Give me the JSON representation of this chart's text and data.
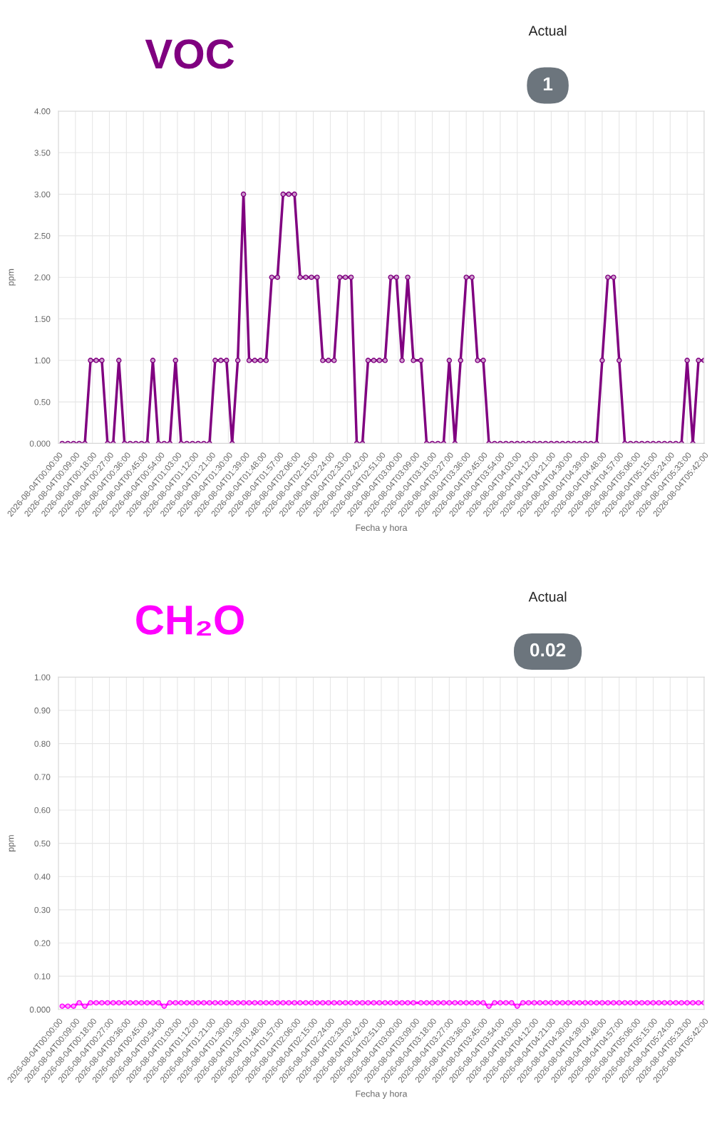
{
  "chart_data": [
    {
      "type": "line",
      "title": "VOC",
      "xlabel": "Fecha y hora",
      "ylabel": "ppm",
      "annotations": [
        "Actual",
        "1"
      ],
      "x": [
        "2026-08-04T00:02",
        "2026-08-04T00:05",
        "2026-08-04T00:08",
        "2026-08-04T00:11",
        "2026-08-04T00:14",
        "2026-08-04T00:17",
        "2026-08-04T00:20",
        "2026-08-04T00:23",
        "2026-08-04T00:26",
        "2026-08-04T00:29",
        "2026-08-04T00:32",
        "2026-08-04T00:35",
        "2026-08-04T00:38",
        "2026-08-04T00:41",
        "2026-08-04T00:44",
        "2026-08-04T00:47",
        "2026-08-04T00:50",
        "2026-08-04T00:53",
        "2026-08-04T00:56",
        "2026-08-04T00:59",
        "2026-08-04T01:02",
        "2026-08-04T01:05",
        "2026-08-04T01:08",
        "2026-08-04T01:11",
        "2026-08-04T01:14",
        "2026-08-04T01:17",
        "2026-08-04T01:20",
        "2026-08-04T01:23",
        "2026-08-04T01:26",
        "2026-08-04T01:29",
        "2026-08-04T01:32",
        "2026-08-04T01:35",
        "2026-08-04T01:38",
        "2026-08-04T01:41",
        "2026-08-04T01:44",
        "2026-08-04T01:47",
        "2026-08-04T01:50",
        "2026-08-04T01:53",
        "2026-08-04T01:56",
        "2026-08-04T01:59",
        "2026-08-04T02:02",
        "2026-08-04T02:05",
        "2026-08-04T02:08",
        "2026-08-04T02:11",
        "2026-08-04T02:14",
        "2026-08-04T02:17",
        "2026-08-04T02:20",
        "2026-08-04T02:23",
        "2026-08-04T02:26",
        "2026-08-04T02:29",
        "2026-08-04T02:32",
        "2026-08-04T02:35",
        "2026-08-04T02:38",
        "2026-08-04T02:41",
        "2026-08-04T02:44",
        "2026-08-04T02:47",
        "2026-08-04T02:50",
        "2026-08-04T02:53",
        "2026-08-04T02:56",
        "2026-08-04T02:59",
        "2026-08-04T03:02",
        "2026-08-04T03:05",
        "2026-08-04T03:08",
        "2026-08-04T03:12",
        "2026-08-04T03:15",
        "2026-08-04T03:18",
        "2026-08-04T03:21",
        "2026-08-04T03:24",
        "2026-08-04T03:27",
        "2026-08-04T03:30",
        "2026-08-04T03:33",
        "2026-08-04T03:36",
        "2026-08-04T03:39",
        "2026-08-04T03:42",
        "2026-08-04T03:45",
        "2026-08-04T03:48",
        "2026-08-04T03:51",
        "2026-08-04T03:54",
        "2026-08-04T03:57",
        "2026-08-04T04:00",
        "2026-08-04T04:03",
        "2026-08-04T04:06",
        "2026-08-04T04:09",
        "2026-08-04T04:12",
        "2026-08-04T04:15",
        "2026-08-04T04:18",
        "2026-08-04T04:21",
        "2026-08-04T04:24",
        "2026-08-04T04:27",
        "2026-08-04T04:30",
        "2026-08-04T04:33",
        "2026-08-04T04:36",
        "2026-08-04T04:39",
        "2026-08-04T04:42",
        "2026-08-04T04:45",
        "2026-08-04T04:48",
        "2026-08-04T04:51",
        "2026-08-04T04:54",
        "2026-08-04T04:57",
        "2026-08-04T05:00",
        "2026-08-04T05:03",
        "2026-08-04T05:06",
        "2026-08-04T05:09",
        "2026-08-04T05:12",
        "2026-08-04T05:15",
        "2026-08-04T05:18",
        "2026-08-04T05:21",
        "2026-08-04T05:24",
        "2026-08-04T05:27",
        "2026-08-04T05:30",
        "2026-08-04T05:33",
        "2026-08-04T05:36",
        "2026-08-04T05:39",
        "2026-08-04T05:42"
      ],
      "series": [
        {
          "color": "#800080",
          "values": [
            0,
            0,
            0,
            0,
            0,
            1,
            1,
            1,
            0,
            0,
            1,
            0,
            0,
            0,
            0,
            0,
            1,
            0,
            0,
            0,
            1,
            0,
            0,
            0,
            0,
            0,
            0,
            1,
            1,
            1,
            0,
            1,
            3,
            1,
            1,
            1,
            1,
            2,
            2,
            3,
            3,
            3,
            2,
            2,
            2,
            2,
            1,
            1,
            1,
            2,
            2,
            2,
            0,
            0,
            1,
            1,
            1,
            1,
            2,
            2,
            1,
            2,
            1,
            1,
            0,
            0,
            0,
            0,
            1,
            0,
            1,
            2,
            2,
            1,
            1,
            0,
            0,
            0,
            0,
            0,
            0,
            0,
            0,
            0,
            0,
            0,
            0,
            0,
            0,
            0,
            0,
            0,
            0,
            0,
            0,
            1,
            2,
            2,
            1,
            0,
            0,
            0,
            0,
            0,
            0,
            0,
            0,
            0,
            0,
            0,
            1,
            0,
            1,
            1
          ]
        }
      ],
      "xlim": [
        "2026-08-04T00:00",
        "2026-08-04T05:42"
      ],
      "xticks": [
        {
          "value": "2026-08-04T00:00",
          "label": "2026-08-04T00:00:00"
        },
        {
          "value": "2026-08-04T00:09",
          "label": "2026-08-04T00:09:00"
        },
        {
          "value": "2026-08-04T00:18",
          "label": "2026-08-04T00:18:00"
        },
        {
          "value": "2026-08-04T00:27",
          "label": "2026-08-04T00:27:00"
        },
        {
          "value": "2026-08-04T00:36",
          "label": "2026-08-04T00:36:00"
        },
        {
          "value": "2026-08-04T00:45",
          "label": "2026-08-04T00:45:00"
        },
        {
          "value": "2026-08-04T00:54",
          "label": "2026-08-04T00:54:00"
        },
        {
          "value": "2026-08-04T01:03",
          "label": "2026-08-04T01:03:00"
        },
        {
          "value": "2026-08-04T01:12",
          "label": "2026-08-04T01:12:00"
        },
        {
          "value": "2026-08-04T01:21",
          "label": "2026-08-04T01:21:00"
        },
        {
          "value": "2026-08-04T01:30",
          "label": "2026-08-04T01:30:00"
        },
        {
          "value": "2026-08-04T01:39",
          "label": "2026-08-04T01:39:00"
        },
        {
          "value": "2026-08-04T01:48",
          "label": "2026-08-04T01:48:00"
        },
        {
          "value": "2026-08-04T01:57",
          "label": "2026-08-04T01:57:00"
        },
        {
          "value": "2026-08-04T02:06",
          "label": "2026-08-04T02:06:00"
        },
        {
          "value": "2026-08-04T02:15",
          "label": "2026-08-04T02:15:00"
        },
        {
          "value": "2026-08-04T02:24",
          "label": "2026-08-04T02:24:00"
        },
        {
          "value": "2026-08-04T02:33",
          "label": "2026-08-04T02:33:00"
        },
        {
          "value": "2026-08-04T02:42",
          "label": "2026-08-04T02:42:00"
        },
        {
          "value": "2026-08-04T02:51",
          "label": "2026-08-04T02:51:00"
        },
        {
          "value": "2026-08-04T03:00",
          "label": "2026-08-04T03:00:00"
        },
        {
          "value": "2026-08-04T03:09",
          "label": "2026-08-04T03:09:00"
        },
        {
          "value": "2026-08-04T03:18",
          "label": "2026-08-04T03:18:00"
        },
        {
          "value": "2026-08-04T03:27",
          "label": "2026-08-04T03:27:00"
        },
        {
          "value": "2026-08-04T03:36",
          "label": "2026-08-04T03:36:00"
        },
        {
          "value": "2026-08-04T03:45",
          "label": "2026-08-04T03:45:00"
        },
        {
          "value": "2026-08-04T03:54",
          "label": "2026-08-04T03:54:00"
        },
        {
          "value": "2026-08-04T04:03",
          "label": "2026-08-04T04:03:00"
        },
        {
          "value": "2026-08-04T04:12",
          "label": "2026-08-04T04:12:00"
        },
        {
          "value": "2026-08-04T04:21",
          "label": "2026-08-04T04:21:00"
        },
        {
          "value": "2026-08-04T04:30",
          "label": "2026-08-04T04:30:00"
        },
        {
          "value": "2026-08-04T04:39",
          "label": "2026-08-04T04:39:00"
        },
        {
          "value": "2026-08-04T04:48",
          "label": "2026-08-04T04:48:00"
        },
        {
          "value": "2026-08-04T04:57",
          "label": "2026-08-04T04:57:00"
        },
        {
          "value": "2026-08-04T05:06",
          "label": "2026-08-04T05:06:00"
        },
        {
          "value": "2026-08-04T05:15",
          "label": "2026-08-04T05:15:00"
        },
        {
          "value": "2026-08-04T05:24",
          "label": "2026-08-04T05:24:00"
        },
        {
          "value": "2026-08-04T05:33",
          "label": "2026-08-04T05:33:00"
        },
        {
          "value": "2026-08-04T05:42",
          "label": "2026-08-04T05:42:00"
        }
      ],
      "ylim": [
        0,
        4
      ],
      "yticks": [
        {
          "value": 0,
          "label": "0.000"
        },
        {
          "value": 0.5,
          "label": "0.50"
        },
        {
          "value": 1,
          "label": "1.00"
        },
        {
          "value": 1.5,
          "label": "1.50"
        },
        {
          "value": 2,
          "label": "2.00"
        },
        {
          "value": 2.5,
          "label": "2.50"
        },
        {
          "value": 3,
          "label": "3.00"
        },
        {
          "value": 3.5,
          "label": "3.50"
        },
        {
          "value": 4,
          "label": "4.00"
        }
      ],
      "grid": true,
      "marker": "circle",
      "line_style": "solid"
    },
    {
      "type": "line",
      "title": "CH₂O",
      "xlabel": "Fecha y hora",
      "ylabel": "ppm",
      "annotations": [
        "Actual",
        "0.02"
      ],
      "x": [
        "2026-08-04T00:02",
        "2026-08-04T00:05",
        "2026-08-04T00:08",
        "2026-08-04T00:11",
        "2026-08-04T00:14",
        "2026-08-04T00:17",
        "2026-08-04T00:20",
        "2026-08-04T00:23",
        "2026-08-04T00:26",
        "2026-08-04T00:29",
        "2026-08-04T00:32",
        "2026-08-04T00:35",
        "2026-08-04T00:38",
        "2026-08-04T00:41",
        "2026-08-04T00:44",
        "2026-08-04T00:47",
        "2026-08-04T00:50",
        "2026-08-04T00:53",
        "2026-08-04T00:56",
        "2026-08-04T00:59",
        "2026-08-04T01:02",
        "2026-08-04T01:05",
        "2026-08-04T01:08",
        "2026-08-04T01:11",
        "2026-08-04T01:14",
        "2026-08-04T01:17",
        "2026-08-04T01:20",
        "2026-08-04T01:23",
        "2026-08-04T01:26",
        "2026-08-04T01:29",
        "2026-08-04T01:32",
        "2026-08-04T01:35",
        "2026-08-04T01:38",
        "2026-08-04T01:41",
        "2026-08-04T01:44",
        "2026-08-04T01:47",
        "2026-08-04T01:50",
        "2026-08-04T01:53",
        "2026-08-04T01:56",
        "2026-08-04T01:59",
        "2026-08-04T02:02",
        "2026-08-04T02:05",
        "2026-08-04T02:08",
        "2026-08-04T02:11",
        "2026-08-04T02:14",
        "2026-08-04T02:17",
        "2026-08-04T02:20",
        "2026-08-04T02:23",
        "2026-08-04T02:26",
        "2026-08-04T02:29",
        "2026-08-04T02:32",
        "2026-08-04T02:35",
        "2026-08-04T02:38",
        "2026-08-04T02:41",
        "2026-08-04T02:44",
        "2026-08-04T02:47",
        "2026-08-04T02:50",
        "2026-08-04T02:53",
        "2026-08-04T02:56",
        "2026-08-04T02:59",
        "2026-08-04T03:02",
        "2026-08-04T03:05",
        "2026-08-04T03:08",
        "2026-08-04T03:12",
        "2026-08-04T03:15",
        "2026-08-04T03:18",
        "2026-08-04T03:21",
        "2026-08-04T03:24",
        "2026-08-04T03:27",
        "2026-08-04T03:30",
        "2026-08-04T03:33",
        "2026-08-04T03:36",
        "2026-08-04T03:39",
        "2026-08-04T03:42",
        "2026-08-04T03:45",
        "2026-08-04T03:48",
        "2026-08-04T03:51",
        "2026-08-04T03:54",
        "2026-08-04T03:57",
        "2026-08-04T04:00",
        "2026-08-04T04:03",
        "2026-08-04T04:06",
        "2026-08-04T04:09",
        "2026-08-04T04:12",
        "2026-08-04T04:15",
        "2026-08-04T04:18",
        "2026-08-04T04:21",
        "2026-08-04T04:24",
        "2026-08-04T04:27",
        "2026-08-04T04:30",
        "2026-08-04T04:33",
        "2026-08-04T04:36",
        "2026-08-04T04:39",
        "2026-08-04T04:42",
        "2026-08-04T04:45",
        "2026-08-04T04:48",
        "2026-08-04T04:51",
        "2026-08-04T04:54",
        "2026-08-04T04:57",
        "2026-08-04T05:00",
        "2026-08-04T05:03",
        "2026-08-04T05:06",
        "2026-08-04T05:09",
        "2026-08-04T05:12",
        "2026-08-04T05:15",
        "2026-08-04T05:18",
        "2026-08-04T05:21",
        "2026-08-04T05:24",
        "2026-08-04T05:27",
        "2026-08-04T05:30",
        "2026-08-04T05:33",
        "2026-08-04T05:36",
        "2026-08-04T05:39",
        "2026-08-04T05:42"
      ],
      "series": [
        {
          "color": "#ff00ff",
          "values": [
            0.01,
            0.01,
            0.01,
            0.02,
            0.01,
            0.02,
            0.02,
            0.02,
            0.02,
            0.02,
            0.02,
            0.02,
            0.02,
            0.02,
            0.02,
            0.02,
            0.02,
            0.02,
            0.01,
            0.02,
            0.02,
            0.02,
            0.02,
            0.02,
            0.02,
            0.02,
            0.02,
            0.02,
            0.02,
            0.02,
            0.02,
            0.02,
            0.02,
            0.02,
            0.02,
            0.02,
            0.02,
            0.02,
            0.02,
            0.02,
            0.02,
            0.02,
            0.02,
            0.02,
            0.02,
            0.02,
            0.02,
            0.02,
            0.02,
            0.02,
            0.02,
            0.02,
            0.02,
            0.02,
            0.02,
            0.02,
            0.02,
            0.02,
            0.02,
            0.02,
            0.02,
            0.02,
            0.02,
            0.02,
            0.02,
            0.02,
            0.02,
            0.02,
            0.02,
            0.02,
            0.02,
            0.02,
            0.02,
            0.02,
            0.02,
            0.01,
            0.02,
            0.02,
            0.02,
            0.02,
            0.01,
            0.02,
            0.02,
            0.02,
            0.02,
            0.02,
            0.02,
            0.02,
            0.02,
            0.02,
            0.02,
            0.02,
            0.02,
            0.02,
            0.02,
            0.02,
            0.02,
            0.02,
            0.02,
            0.02,
            0.02,
            0.02,
            0.02,
            0.02,
            0.02,
            0.02,
            0.02,
            0.02,
            0.02,
            0.02,
            0.02,
            0.02,
            0.02,
            0.02
          ]
        }
      ],
      "xlim": [
        "2026-08-04T00:00",
        "2026-08-04T05:42"
      ],
      "xticks": [
        {
          "value": "2026-08-04T00:00",
          "label": "2026-08-04T00:00:00"
        },
        {
          "value": "2026-08-04T00:09",
          "label": "2026-08-04T00:09:00"
        },
        {
          "value": "2026-08-04T00:18",
          "label": "2026-08-04T00:18:00"
        },
        {
          "value": "2026-08-04T00:27",
          "label": "2026-08-04T00:27:00"
        },
        {
          "value": "2026-08-04T00:36",
          "label": "2026-08-04T00:36:00"
        },
        {
          "value": "2026-08-04T00:45",
          "label": "2026-08-04T00:45:00"
        },
        {
          "value": "2026-08-04T00:54",
          "label": "2026-08-04T00:54:00"
        },
        {
          "value": "2026-08-04T01:03",
          "label": "2026-08-04T01:03:00"
        },
        {
          "value": "2026-08-04T01:12",
          "label": "2026-08-04T01:12:00"
        },
        {
          "value": "2026-08-04T01:21",
          "label": "2026-08-04T01:21:00"
        },
        {
          "value": "2026-08-04T01:30",
          "label": "2026-08-04T01:30:00"
        },
        {
          "value": "2026-08-04T01:39",
          "label": "2026-08-04T01:39:00"
        },
        {
          "value": "2026-08-04T01:48",
          "label": "2026-08-04T01:48:00"
        },
        {
          "value": "2026-08-04T01:57",
          "label": "2026-08-04T01:57:00"
        },
        {
          "value": "2026-08-04T02:06",
          "label": "2026-08-04T02:06:00"
        },
        {
          "value": "2026-08-04T02:15",
          "label": "2026-08-04T02:15:00"
        },
        {
          "value": "2026-08-04T02:24",
          "label": "2026-08-04T02:24:00"
        },
        {
          "value": "2026-08-04T02:33",
          "label": "2026-08-04T02:33:00"
        },
        {
          "value": "2026-08-04T02:42",
          "label": "2026-08-04T02:42:00"
        },
        {
          "value": "2026-08-04T02:51",
          "label": "2026-08-04T02:51:00"
        },
        {
          "value": "2026-08-04T03:00",
          "label": "2026-08-04T03:00:00"
        },
        {
          "value": "2026-08-04T03:09",
          "label": "2026-08-04T03:09:00"
        },
        {
          "value": "2026-08-04T03:18",
          "label": "2026-08-04T03:18:00"
        },
        {
          "value": "2026-08-04T03:27",
          "label": "2026-08-04T03:27:00"
        },
        {
          "value": "2026-08-04T03:36",
          "label": "2026-08-04T03:36:00"
        },
        {
          "value": "2026-08-04T03:45",
          "label": "2026-08-04T03:45:00"
        },
        {
          "value": "2026-08-04T03:54",
          "label": "2026-08-04T03:54:00"
        },
        {
          "value": "2026-08-04T04:03",
          "label": "2026-08-04T04:03:00"
        },
        {
          "value": "2026-08-04T04:12",
          "label": "2026-08-04T04:12:00"
        },
        {
          "value": "2026-08-04T04:21",
          "label": "2026-08-04T04:21:00"
        },
        {
          "value": "2026-08-04T04:30",
          "label": "2026-08-04T04:30:00"
        },
        {
          "value": "2026-08-04T04:39",
          "label": "2026-08-04T04:39:00"
        },
        {
          "value": "2026-08-04T04:48",
          "label": "2026-08-04T04:48:00"
        },
        {
          "value": "2026-08-04T04:57",
          "label": "2026-08-04T04:57:00"
        },
        {
          "value": "2026-08-04T05:06",
          "label": "2026-08-04T05:06:00"
        },
        {
          "value": "2026-08-04T05:15",
          "label": "2026-08-04T05:15:00"
        },
        {
          "value": "2026-08-04T05:24",
          "label": "2026-08-04T05:24:00"
        },
        {
          "value": "2026-08-04T05:33",
          "label": "2026-08-04T05:33:00"
        },
        {
          "value": "2026-08-04T05:42",
          "label": "2026-08-04T05:42:00"
        }
      ],
      "ylim": [
        0,
        1
      ],
      "yticks": [
        {
          "value": 0,
          "label": "0.000"
        },
        {
          "value": 0.1,
          "label": "0.10"
        },
        {
          "value": 0.2,
          "label": "0.20"
        },
        {
          "value": 0.3,
          "label": "0.30"
        },
        {
          "value": 0.4,
          "label": "0.40"
        },
        {
          "value": 0.5,
          "label": "0.50"
        },
        {
          "value": 0.6,
          "label": "0.60"
        },
        {
          "value": 0.7,
          "label": "0.70"
        },
        {
          "value": 0.8,
          "label": "0.80"
        },
        {
          "value": 0.9,
          "label": "0.90"
        },
        {
          "value": 1,
          "label": "1.00"
        }
      ],
      "grid": true,
      "marker": "circle",
      "line_style": "solid"
    }
  ]
}
